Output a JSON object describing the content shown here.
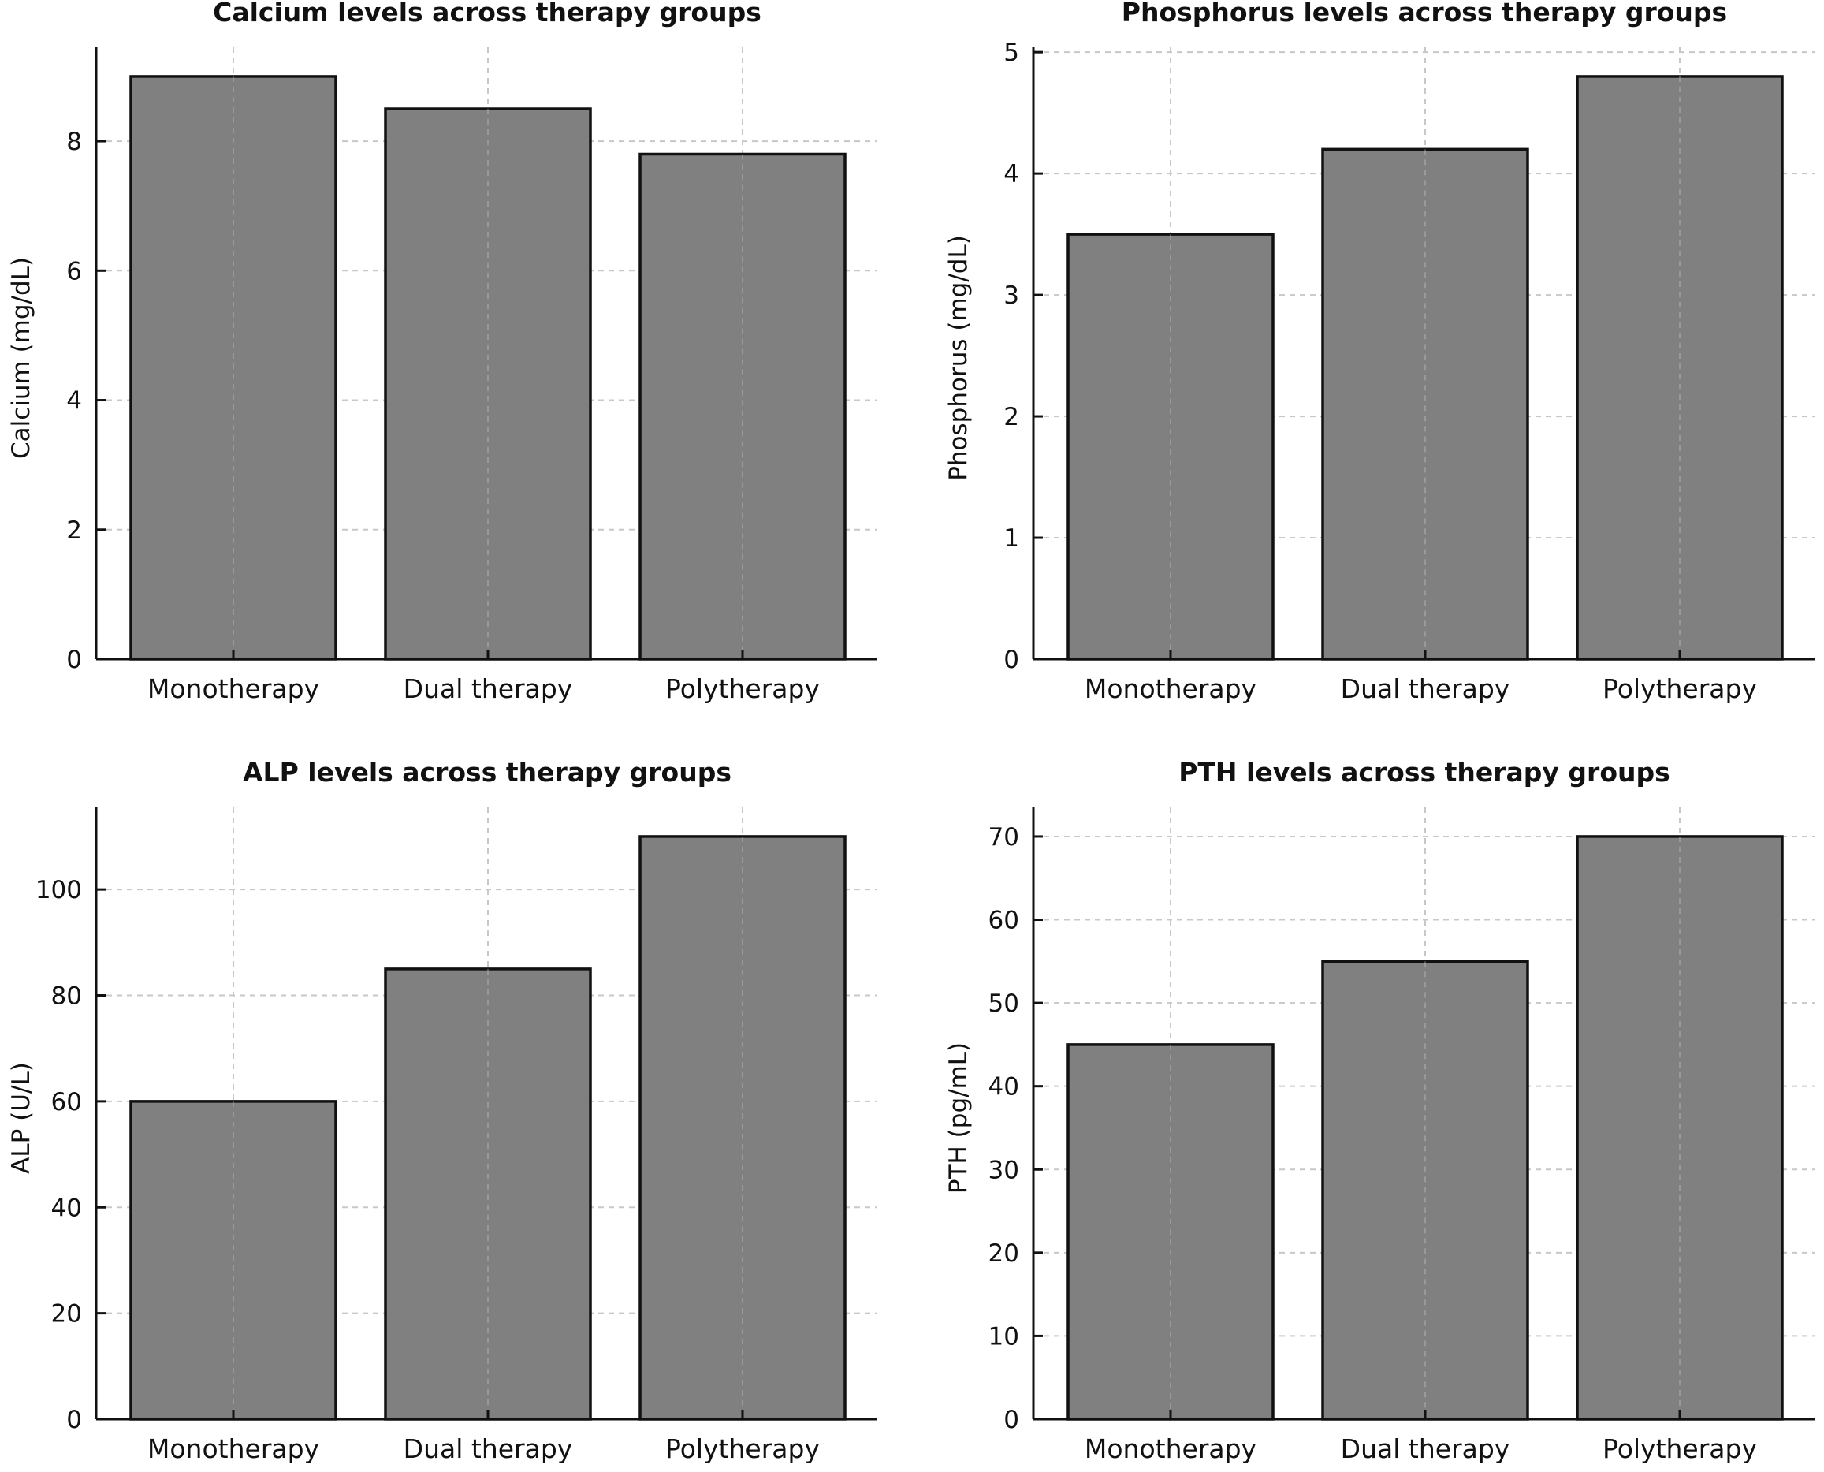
{
  "colors": {
    "bar_fill": "#808080",
    "bar_edge": "#111111",
    "grid": "#c8c8c8",
    "text": "#111111",
    "background": "#ffffff"
  },
  "chart_data": [
    {
      "type": "bar",
      "title": "Calcium levels across therapy groups",
      "xlabel": "",
      "ylabel": "Calcium (mg/dL)",
      "categories": [
        "Monotherapy",
        "Dual therapy",
        "Polytherapy"
      ],
      "values": [
        9.0,
        8.5,
        7.8
      ],
      "ylim": [
        0,
        9.45
      ],
      "yticks": [
        0,
        2,
        4,
        6,
        8
      ],
      "grid": true,
      "legend": "none"
    },
    {
      "type": "bar",
      "title": "Phosphorus levels across therapy groups",
      "xlabel": "",
      "ylabel": "Phosphorus (mg/dL)",
      "categories": [
        "Monotherapy",
        "Dual therapy",
        "Polytherapy"
      ],
      "values": [
        3.5,
        4.2,
        4.8
      ],
      "ylim": [
        0,
        5.04
      ],
      "yticks": [
        0,
        1,
        2,
        3,
        4,
        5
      ],
      "grid": true,
      "legend": "none"
    },
    {
      "type": "bar",
      "title": "ALP levels across therapy groups",
      "xlabel": "",
      "ylabel": "ALP (U/L)",
      "categories": [
        "Monotherapy",
        "Dual therapy",
        "Polytherapy"
      ],
      "values": [
        60,
        85,
        110
      ],
      "ylim": [
        0,
        115.5
      ],
      "yticks": [
        0,
        20,
        40,
        60,
        80,
        100
      ],
      "grid": true,
      "legend": "none"
    },
    {
      "type": "bar",
      "title": "PTH levels across therapy groups",
      "xlabel": "",
      "ylabel": "PTH (pg/mL)",
      "categories": [
        "Monotherapy",
        "Dual therapy",
        "Polytherapy"
      ],
      "values": [
        45,
        55,
        70
      ],
      "ylim": [
        0,
        73.5
      ],
      "yticks": [
        0,
        10,
        20,
        30,
        40,
        50,
        60,
        70
      ],
      "grid": true,
      "legend": "none"
    }
  ]
}
